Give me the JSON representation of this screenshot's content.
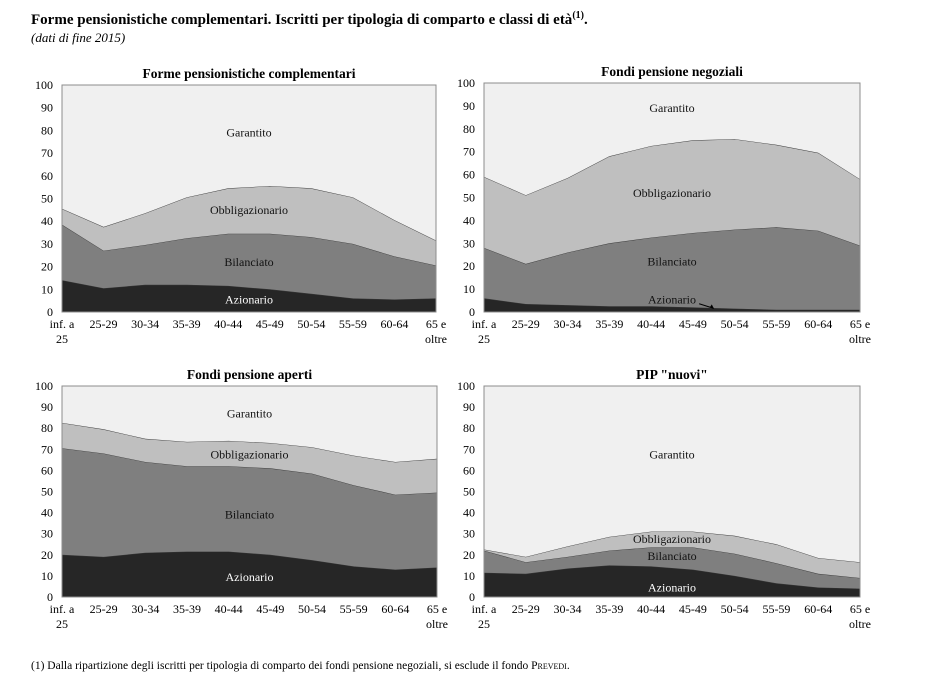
{
  "header": {
    "title": "Forme pensionistiche complementari. Iscritti per tipologia di comparto e classi di età",
    "title_note": "(1)",
    "title_end": ".",
    "subtitle": "(dati di fine 2015)"
  },
  "footnote": {
    "text": "(1) Dalla ripartizione degli iscritti per tipologia di comparto dei fondi pensione negoziali, si esclude il fondo ",
    "fund_name": "Prevedi",
    "end": "."
  },
  "colors": {
    "Azionario": "#262626",
    "Bilanciato": "#7f7f7f",
    "Obbligazionario": "#bfbfbf",
    "Garantito": "#f0f0f0"
  },
  "chart_data": [
    {
      "type": "area",
      "stacked": true,
      "title": "Forme pensionistiche complementari",
      "categories": [
        "inf. a 25",
        "25-29",
        "30-34",
        "35-39",
        "40-44",
        "45-49",
        "50-54",
        "55-59",
        "60-64",
        "65 e oltre"
      ],
      "ylim": [
        0,
        100
      ],
      "yticks": [
        0,
        10,
        20,
        30,
        40,
        50,
        60,
        70,
        80,
        90,
        100
      ],
      "xlabel": "",
      "ylabel": "",
      "series": [
        {
          "name": "Azionario",
          "values": [
            14,
            10.5,
            12,
            12,
            11.5,
            10,
            8,
            6,
            5.5,
            6
          ]
        },
        {
          "name": "Bilanciato",
          "values": [
            24.5,
            16.5,
            17.5,
            20.5,
            23,
            24.5,
            25,
            24,
            19,
            14.5
          ]
        },
        {
          "name": "Obbligazionario",
          "values": [
            7,
            10.5,
            14,
            18,
            20,
            21,
            21.5,
            20.5,
            16,
            11
          ]
        },
        {
          "name": "Garantito",
          "values": [
            54.5,
            62.5,
            56.5,
            49.5,
            45.5,
            44.5,
            45.5,
            49.5,
            59.5,
            68.5
          ]
        }
      ],
      "labels": [
        {
          "series": "Garantito",
          "text": "Garantito",
          "x": 4.5,
          "y": 79
        },
        {
          "series": "Obbligazionario",
          "text": "Obbligazionario",
          "x": 4.5,
          "y": 45
        },
        {
          "series": "Bilanciato",
          "text": "Bilanciato",
          "x": 4.5,
          "y": 22
        },
        {
          "series": "Azionario",
          "text": "Azionario",
          "x": 4.5,
          "y": 5.5
        }
      ]
    },
    {
      "type": "area",
      "stacked": true,
      "title": "Fondi pensione negoziali",
      "categories": [
        "inf. a 25",
        "25-29",
        "30-34",
        "35-39",
        "40-44",
        "45-49",
        "50-54",
        "55-59",
        "60-64",
        "65 e oltre"
      ],
      "ylim": [
        0,
        100
      ],
      "yticks": [
        0,
        10,
        20,
        30,
        40,
        50,
        60,
        70,
        80,
        90,
        100
      ],
      "xlabel": "",
      "ylabel": "",
      "series": [
        {
          "name": "Azionario",
          "values": [
            6,
            3.5,
            3,
            2.5,
            2.5,
            2,
            1.5,
            1,
            1,
            1
          ]
        },
        {
          "name": "Bilanciato",
          "values": [
            22,
            17.5,
            23,
            27.5,
            30,
            32.5,
            34.5,
            36,
            34.5,
            28
          ]
        },
        {
          "name": "Obbligazionario",
          "values": [
            31,
            30,
            32.5,
            38,
            40,
            40.5,
            39.5,
            36,
            34,
            29
          ]
        },
        {
          "name": "Garantito",
          "values": [
            41,
            49,
            41.5,
            32,
            27.5,
            25,
            24.5,
            27,
            30.5,
            42
          ]
        }
      ],
      "labels": [
        {
          "series": "Garantito",
          "text": "Garantito",
          "x": 4.5,
          "y": 89
        },
        {
          "series": "Obbligazionario",
          "text": "Obbligazionario",
          "x": 4.5,
          "y": 52
        },
        {
          "series": "Bilanciato",
          "text": "Bilanciato",
          "x": 4.5,
          "y": 22
        },
        {
          "series": "Azionario",
          "text": "Azionario",
          "x": 4.5,
          "y": 5.5
        }
      ]
    },
    {
      "type": "area",
      "stacked": true,
      "title": "Fondi pensione aperti",
      "categories": [
        "inf. a 25",
        "25-29",
        "30-34",
        "35-39",
        "40-44",
        "45-49",
        "50-54",
        "55-59",
        "60-64",
        "65 e oltre"
      ],
      "ylim": [
        0,
        100
      ],
      "yticks": [
        0,
        10,
        20,
        30,
        40,
        50,
        60,
        70,
        80,
        90,
        100
      ],
      "xlabel": "",
      "ylabel": "",
      "series": [
        {
          "name": "Azionario",
          "values": [
            20,
            19,
            21,
            21.5,
            21.5,
            20,
            17.5,
            14.5,
            13,
            14
          ]
        },
        {
          "name": "Bilanciato",
          "values": [
            50.5,
            49,
            43,
            40.5,
            40.5,
            41,
            41,
            38.5,
            35.5,
            35.5
          ]
        },
        {
          "name": "Obbligazionario",
          "values": [
            12,
            11.5,
            11,
            11.5,
            12,
            12,
            12.5,
            14,
            15.5,
            16
          ]
        },
        {
          "name": "Garantito",
          "values": [
            17.5,
            20.5,
            25,
            26.5,
            26,
            27,
            29,
            33,
            36,
            34.5
          ]
        }
      ],
      "labels": [
        {
          "series": "Garantito",
          "text": "Garantito",
          "x": 4.5,
          "y": 87
        },
        {
          "series": "Obbligazionario",
          "text": "Obbligazionario",
          "x": 4.5,
          "y": 67.5
        },
        {
          "series": "Bilanciato",
          "text": "Bilanciato",
          "x": 4.5,
          "y": 39
        },
        {
          "series": "Azionario",
          "text": "Azionario",
          "x": 4.5,
          "y": 9.5
        }
      ]
    },
    {
      "type": "area",
      "stacked": true,
      "title": "PIP \"nuovi\"",
      "categories": [
        "inf. a 25",
        "25-29",
        "30-34",
        "35-39",
        "40-44",
        "45-49",
        "50-54",
        "55-59",
        "60-64",
        "65 e oltre"
      ],
      "ylim": [
        0,
        100
      ],
      "yticks": [
        0,
        10,
        20,
        30,
        40,
        50,
        60,
        70,
        80,
        90,
        100
      ],
      "xlabel": "",
      "ylabel": "",
      "series": [
        {
          "name": "Azionario",
          "values": [
            11.5,
            11,
            13.5,
            15,
            14.5,
            13,
            10,
            6.5,
            4.5,
            4
          ]
        },
        {
          "name": "Bilanciato",
          "values": [
            10.5,
            5.5,
            5.5,
            7,
            9,
            10.5,
            10.5,
            9.5,
            6.5,
            5
          ]
        },
        {
          "name": "Obbligazionario",
          "values": [
            0.5,
            2.5,
            5,
            6.5,
            7.5,
            7.5,
            8.5,
            9,
            7.5,
            7.5
          ]
        },
        {
          "name": "Garantito",
          "values": [
            77.5,
            81,
            76,
            71.5,
            69,
            69,
            71,
            75,
            81.5,
            83.5
          ]
        }
      ],
      "labels": [
        {
          "series": "Garantito",
          "text": "Garantito",
          "x": 4.5,
          "y": 67.5
        },
        {
          "series": "Obbligazionario",
          "text": "Obbligazionario",
          "x": 4.5,
          "y": 27.5
        },
        {
          "series": "Bilanciato",
          "text": "Bilanciato",
          "x": 4.5,
          "y": 19.5
        },
        {
          "series": "Azionario",
          "text": "Azionario",
          "x": 4.5,
          "y": 4.5
        }
      ]
    }
  ]
}
